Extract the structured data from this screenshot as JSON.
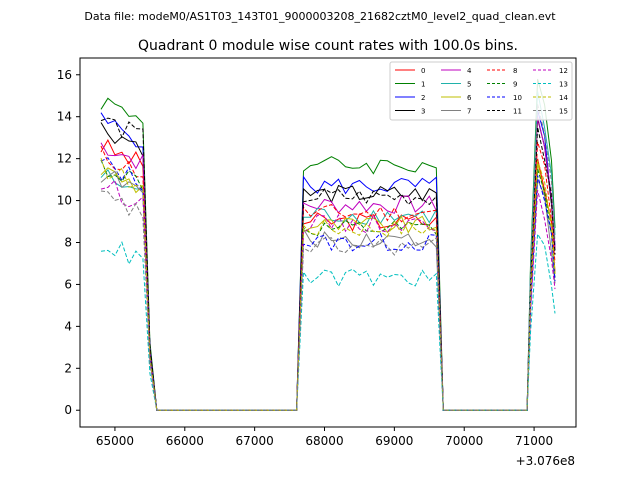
{
  "chart_data": {
    "type": "line",
    "suptitle": "Data file: modeM0/AS1T03_143T01_9000003208_21682cztM0_level2_quad_clean.evt",
    "title": "Quadrant 0 module wise count rates with 100.0s bins.",
    "xlabel": "",
    "ylabel": "",
    "x_offset_label": "+3.076e8",
    "xlim": [
      64500,
      71600
    ],
    "ylim": [
      -0.8,
      16.8
    ],
    "xticks": [
      65000,
      66000,
      67000,
      68000,
      69000,
      70000,
      71000
    ],
    "xtick_labels": [
      "65000",
      "66000",
      "67000",
      "68000",
      "69000",
      "70000",
      "71000"
    ],
    "yticks": [
      0,
      2,
      4,
      6,
      8,
      10,
      12,
      14,
      16
    ],
    "ytick_labels": [
      "0",
      "2",
      "4",
      "6",
      "8",
      "10",
      "12",
      "14",
      "16"
    ],
    "legend_position": "top-right",
    "segments": [
      {
        "start": 64800,
        "end": 65600,
        "bin": 100
      },
      {
        "start": 65600,
        "end": 67600,
        "bin": 100
      },
      {
        "start": 67600,
        "end": 69700,
        "bin": 100
      },
      {
        "start": 69700,
        "end": 70900,
        "bin": 100
      },
      {
        "start": 70900,
        "end": 71300,
        "bin": 100
      }
    ],
    "series": [
      {
        "name": "0",
        "color": "#ff0000",
        "dash": "solid",
        "level_a": 12.6,
        "level_b": 9.0,
        "peak": 12.0
      },
      {
        "name": "1",
        "color": "#008000",
        "dash": "solid",
        "level_a": 14.8,
        "level_b": 11.7,
        "peak": 15.8
      },
      {
        "name": "2",
        "color": "#0000ff",
        "dash": "solid",
        "level_a": 13.8,
        "level_b": 10.7,
        "peak": 14.3
      },
      {
        "name": "3",
        "color": "#000000",
        "dash": "solid",
        "level_a": 13.5,
        "level_b": 10.3,
        "peak": 13.9
      },
      {
        "name": "4",
        "color": "#bf00bf",
        "dash": "solid",
        "level_a": 12.7,
        "level_b": 9.8,
        "peak": 14.0
      },
      {
        "name": "5",
        "color": "#20b2aa",
        "dash": "solid",
        "level_a": 11.2,
        "level_b": 9.3,
        "peak": 15.2
      },
      {
        "name": "6",
        "color": "#bfbf00",
        "dash": "solid",
        "level_a": 11.5,
        "level_b": 8.8,
        "peak": 11.8
      },
      {
        "name": "7",
        "color": "#808080",
        "dash": "solid",
        "level_a": 11.3,
        "level_b": 8.2,
        "peak": 11.0
      },
      {
        "name": "8",
        "color": "#ff0000",
        "dash": "dashed",
        "level_a": 12.2,
        "level_b": 9.4,
        "peak": 12.8
      },
      {
        "name": "9",
        "color": "#008000",
        "dash": "dashed",
        "level_a": 11.7,
        "level_b": 8.6,
        "peak": 11.5
      },
      {
        "name": "10",
        "color": "#0000ff",
        "dash": "dashed",
        "level_a": 11.8,
        "level_b": 8.0,
        "peak": 11.2
      },
      {
        "name": "11",
        "color": "#000000",
        "dash": "dashed",
        "level_a": 13.9,
        "level_b": 10.2,
        "peak": 13.5
      },
      {
        "name": "12",
        "color": "#bf00bf",
        "dash": "dashed",
        "level_a": 10.8,
        "level_b": 8.9,
        "peak": 10.5
      },
      {
        "name": "13",
        "color": "#00bfbf",
        "dash": "dashed",
        "level_a": 8.0,
        "level_b": 6.3,
        "peak": 8.4
      },
      {
        "name": "14",
        "color": "#bfbf00",
        "dash": "dashed",
        "level_a": 11.6,
        "level_b": 8.7,
        "peak": 11.9
      },
      {
        "name": "15",
        "color": "#808080",
        "dash": "dashed",
        "level_a": 10.2,
        "level_b": 7.8,
        "peak": 14.6
      }
    ]
  }
}
